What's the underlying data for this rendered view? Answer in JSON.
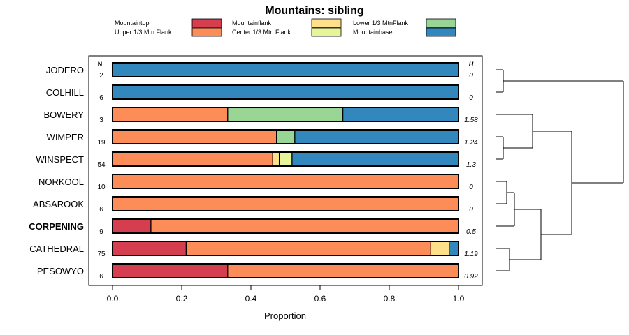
{
  "chart_data": {
    "type": "bar",
    "orientation": "horizontal-stacked",
    "title": "Mountains: sibling",
    "xlabel": "Proportion",
    "xlim": [
      0,
      1
    ],
    "xticks": [
      "0.0",
      "0.2",
      "0.4",
      "0.6",
      "0.8",
      "1.0"
    ],
    "n_header": "N",
    "h_header": "H",
    "legend": [
      {
        "name": "Mountaintop",
        "color": "#d53e4f"
      },
      {
        "name": "Upper 1/3 Mtn Flank",
        "color": "#fc8d59"
      },
      {
        "name": "Mountainflank",
        "color": "#fee08b"
      },
      {
        "name": "Center 1/3 Mtn Flank",
        "color": "#e6f598"
      },
      {
        "name": "Lower 1/3 MtnFlank",
        "color": "#99d594"
      },
      {
        "name": "Mountainbase",
        "color": "#3288bd"
      }
    ],
    "rows": [
      {
        "label": "JODERO",
        "n": "2",
        "h": "0",
        "bold": false,
        "values": [
          0,
          0,
          0,
          0,
          0,
          1
        ]
      },
      {
        "label": "COLHILL",
        "n": "6",
        "h": "0",
        "bold": false,
        "values": [
          0,
          0,
          0,
          0,
          0,
          1
        ]
      },
      {
        "label": "BOWERY",
        "n": "3",
        "h": "1.58",
        "bold": false,
        "values": [
          0,
          0.333,
          0,
          0,
          0.333,
          0.334
        ]
      },
      {
        "label": "WIMPER",
        "n": "19",
        "h": "1.24",
        "bold": false,
        "values": [
          0,
          0.474,
          0,
          0,
          0.053,
          0.473
        ]
      },
      {
        "label": "WINSPECT",
        "n": "54",
        "h": "1.3",
        "bold": false,
        "values": [
          0,
          0.463,
          0.019,
          0.037,
          0,
          0.481
        ]
      },
      {
        "label": "NORKOOL",
        "n": "10",
        "h": "0",
        "bold": false,
        "values": [
          0,
          1,
          0,
          0,
          0,
          0
        ]
      },
      {
        "label": "ABSAROOK",
        "n": "6",
        "h": "0",
        "bold": false,
        "values": [
          0,
          1,
          0,
          0,
          0,
          0
        ]
      },
      {
        "label": "CORPENING",
        "n": "9",
        "h": "0.5",
        "bold": true,
        "values": [
          0.111,
          0.889,
          0,
          0,
          0,
          0
        ]
      },
      {
        "label": "CATHEDRAL",
        "n": "75",
        "h": "1.19",
        "bold": false,
        "values": [
          0.213,
          0.707,
          0.053,
          0,
          0,
          0.027
        ]
      },
      {
        "label": "PESOWYO",
        "n": "6",
        "h": "0.92",
        "bold": false,
        "values": [
          0.333,
          0.667,
          0,
          0,
          0,
          0
        ]
      }
    ]
  }
}
